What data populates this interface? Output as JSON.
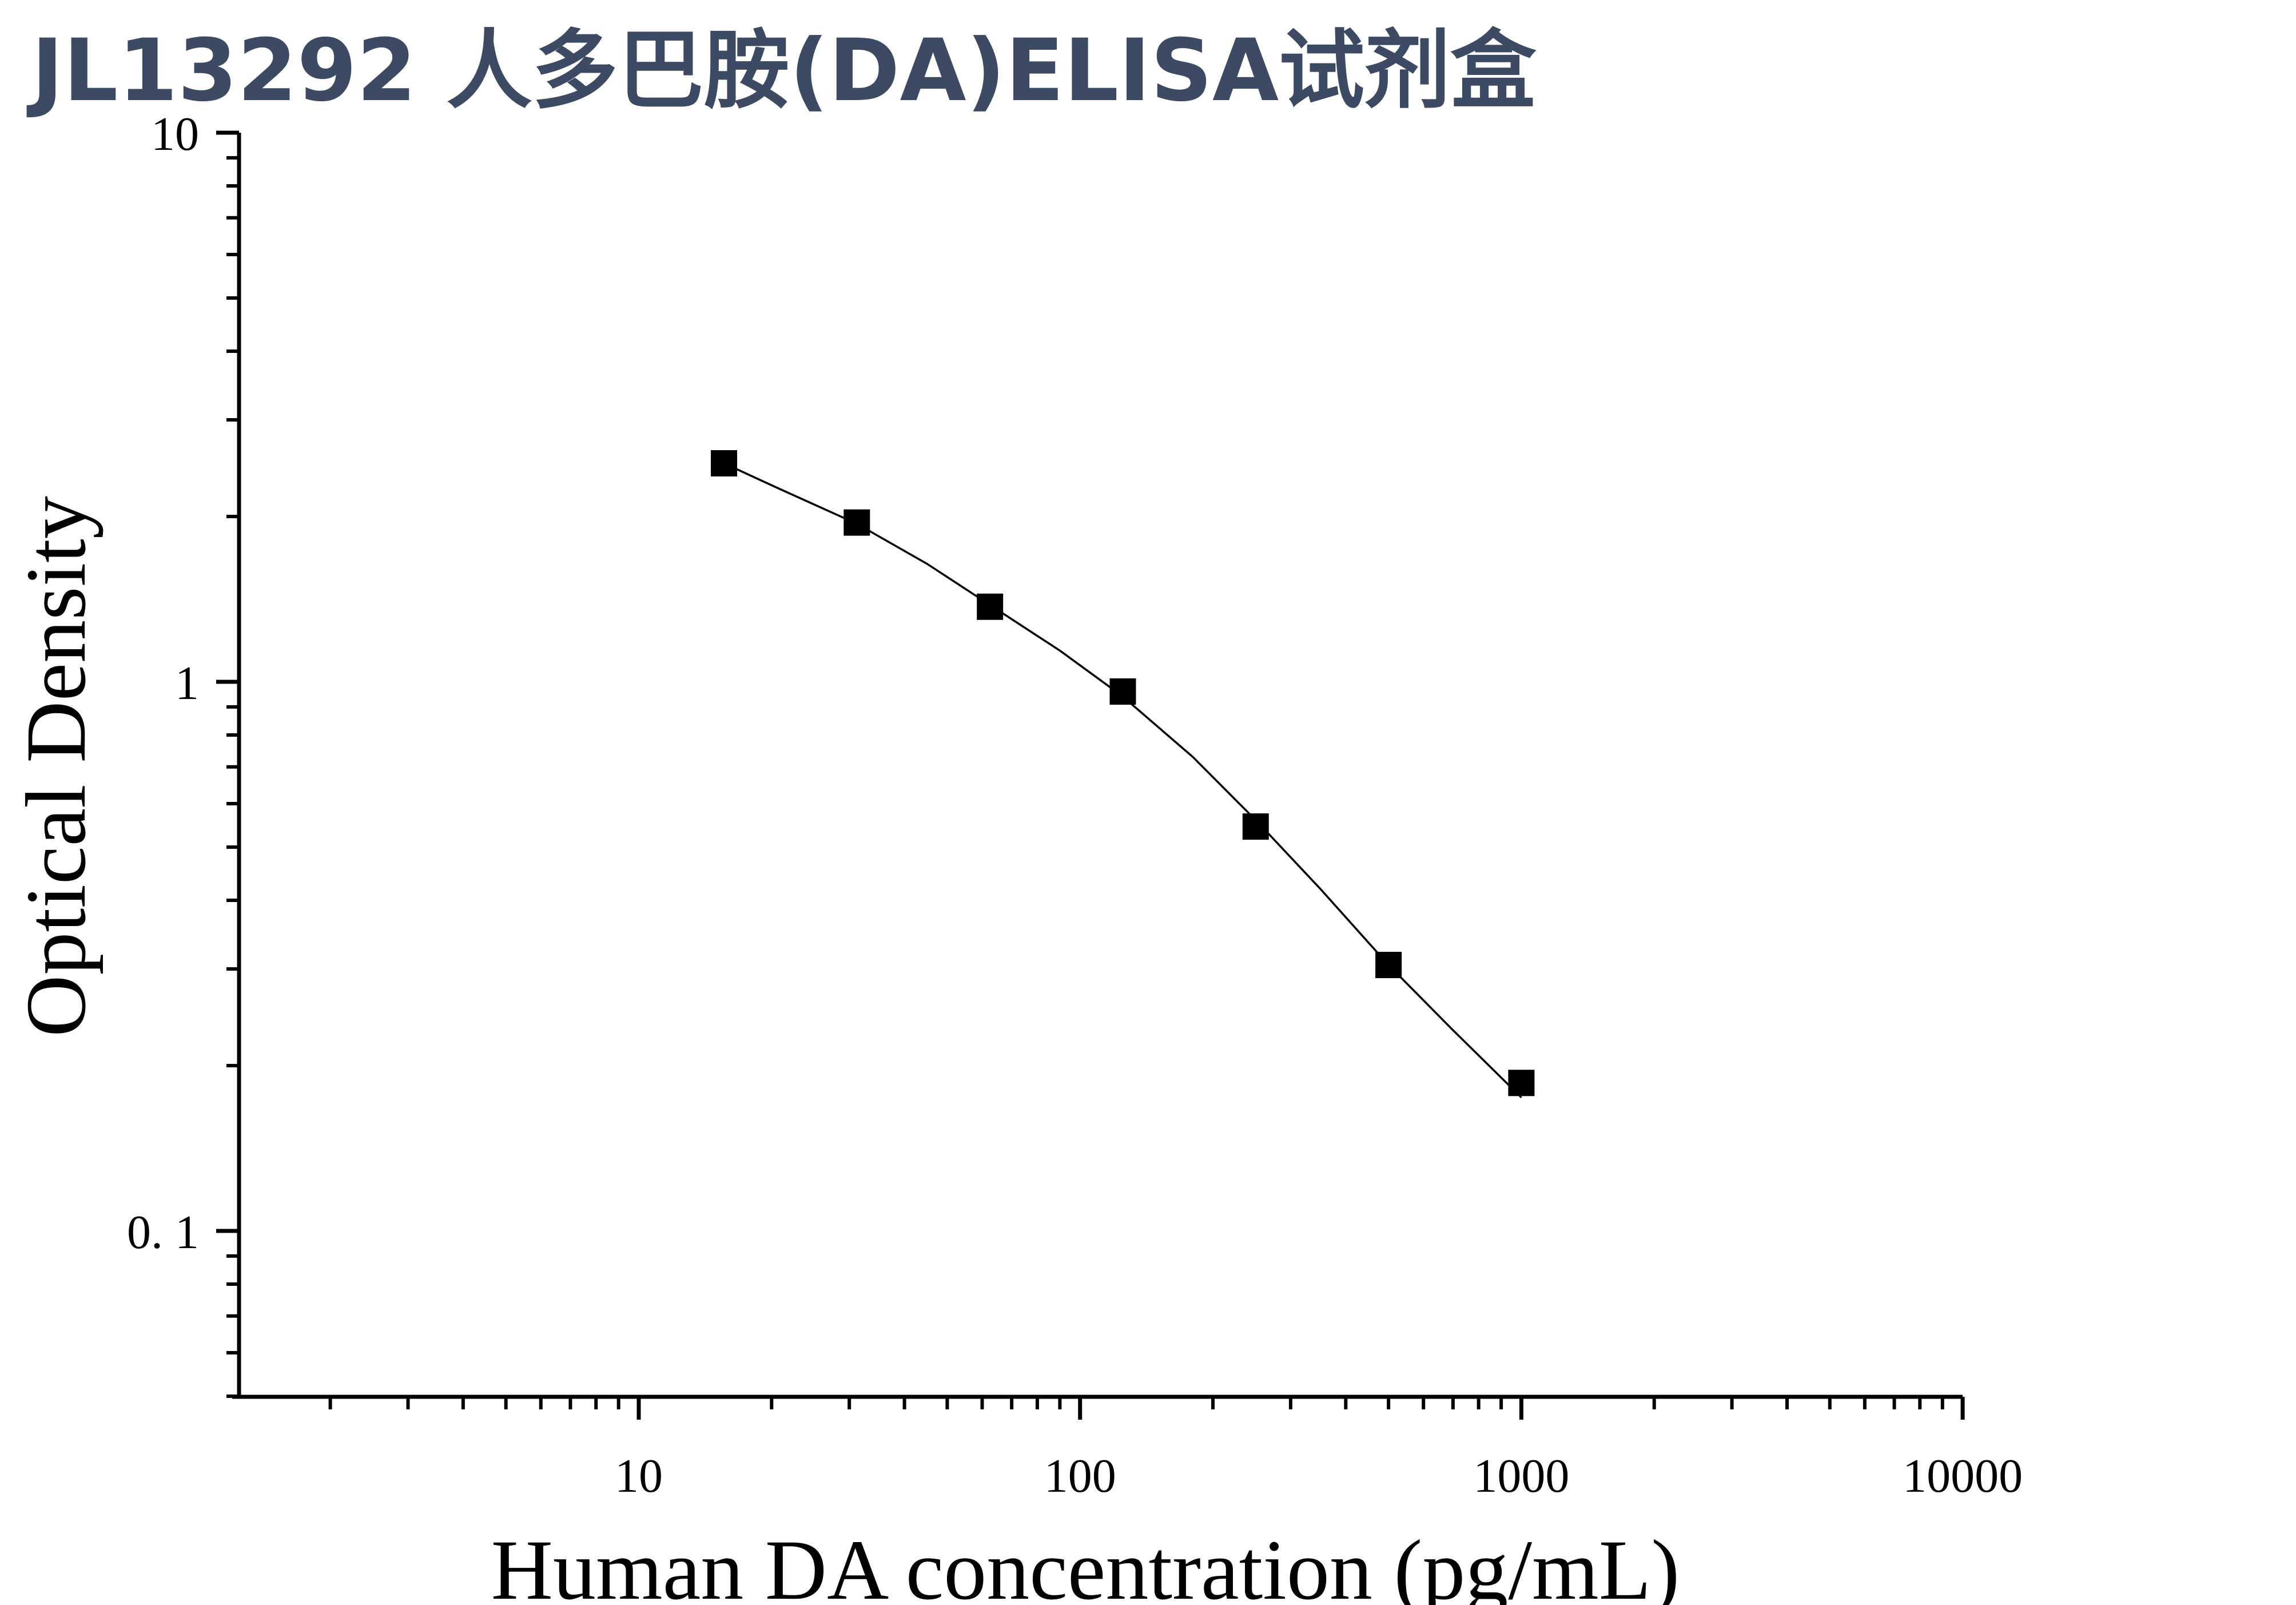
{
  "title": "JL13292 人多巴胺(DA)ELISA试剂盒",
  "colors": {
    "title": "#3d4a63",
    "axis": "#000000",
    "marker": "#000000",
    "curve": "#000000",
    "background": "#ffffff"
  },
  "chart_data": {
    "type": "scatter",
    "title": "JL13292 人多巴胺(DA)ELISA试剂盒",
    "xlabel": "Human DA concentration (pg/mL)",
    "ylabel": "Optical Density",
    "xscale": "log",
    "yscale": "log",
    "xlim": [
      1.35,
      10000
    ],
    "ylim": [
      0.05,
      10
    ],
    "x_tick_labels": [
      "10",
      "100",
      "1000",
      "10000"
    ],
    "x_tick_values": [
      10,
      100,
      1000,
      10000
    ],
    "y_tick_labels": [
      "10",
      "1",
      "0. 1"
    ],
    "y_tick_values": [
      10,
      1,
      0.1
    ],
    "grid": false,
    "legend": "none",
    "series": [
      {
        "marker": "square",
        "x": [
          15.6,
          31.2,
          62.5,
          125,
          250,
          500,
          1000
        ],
        "y": [
          2.5,
          1.95,
          1.37,
          0.96,
          0.545,
          0.305,
          0.186
        ]
      }
    ],
    "fit_curve": {
      "type": "smooth",
      "x": [
        15.6,
        20,
        31.2,
        45,
        62.5,
        90,
        125,
        180,
        250,
        350,
        500,
        700,
        1000
      ],
      "y": [
        2.5,
        2.28,
        1.94,
        1.64,
        1.38,
        1.14,
        0.94,
        0.73,
        0.56,
        0.42,
        0.305,
        0.232,
        0.175
      ]
    }
  }
}
